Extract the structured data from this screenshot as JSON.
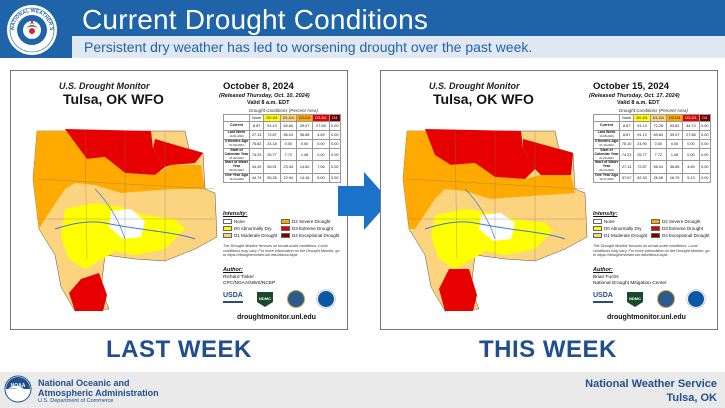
{
  "header": {
    "title": "Current Drought Conditions",
    "subtitle": "Persistent dry weather has led to worsening drought over the past week.",
    "logo_icon": "nws-logo",
    "logo_text": "NATIONAL WEATHER SERVICE"
  },
  "colors": {
    "header_bg": "#1f63a8",
    "accent_text": "#1f4f8f",
    "d0": "#ffff00",
    "d1": "#fcd37f",
    "d2": "#ffaa00",
    "d3": "#e60000",
    "d4": "#730000"
  },
  "panels": [
    {
      "usdm_title": "U.S. Drought Monitor",
      "location": "Tulsa, OK WFO",
      "date": "October 8, 2024",
      "released": "(Released Thursday, Oct. 10, 2024)",
      "valid": "Valid 8 a.m. EDT",
      "stats_caption": "Drought Conditions (Percent Area)",
      "columns": [
        "None",
        "D0-D4",
        "D1-D4",
        "D2-D4",
        "D3-D4",
        "D4"
      ],
      "rows": [
        {
          "label": "Current",
          "date": "",
          "values": [
            "8.87",
            "91.13",
            "69.84",
            "39.07",
            "27.58",
            "0.00"
          ]
        },
        {
          "label": "Last Week",
          "date": "10-01-2024",
          "values": [
            "27.13",
            "72.87",
            "56.04",
            "36.66",
            "4.69",
            "0.00"
          ]
        },
        {
          "label": "3 Months Ago",
          "date": "07-09-2024",
          "values": [
            "75.82",
            "24.18",
            "0.00",
            "0.00",
            "0.00",
            "0.00"
          ]
        },
        {
          "label": "Start of Calendar Year",
          "date": "01-02-2024",
          "values": [
            "74.23",
            "25.77",
            "7.72",
            "1.46",
            "0.00",
            "0.00"
          ]
        },
        {
          "label": "Start of Water Year",
          "date": "09-26-2023",
          "values": [
            "44.49",
            "55.51",
            "23.44",
            "14.60",
            "7.06",
            "0.00"
          ]
        },
        {
          "label": "One Year Ago",
          "date": "10-10-2023",
          "values": [
            "44.74",
            "55.26",
            "22.94",
            "14.16",
            "5.00",
            "0.00"
          ]
        }
      ],
      "intensity_title": "Intensity:",
      "legend": [
        "None",
        "D0 Abnormally Dry",
        "D1 Moderate Drought",
        "D2 Severe Drought",
        "D3 Extreme Drought",
        "D4 Exceptional Drought"
      ],
      "note": "The Drought Monitor focuses on broad-scale conditions. Local conditions may vary. For more information on the Drought Monitor, go to https://droughtmonitor.unl.edu/About.aspx",
      "author_title": "Author:",
      "author_name": "Richard Tinker",
      "author_org": "CPC/NOAA/NWS/NCEP",
      "usda_label": "USDA",
      "ndmc_label": "NDMC",
      "url": "droughtmonitor.unl.edu"
    },
    {
      "usdm_title": "U.S. Drought Monitor",
      "location": "Tulsa, OK WFO",
      "date": "October 15, 2024",
      "released": "(Released Thursday, Oct. 17, 2024)",
      "valid": "Valid 8 a.m. EDT",
      "stats_caption": "Drought Conditions (Percent Area)",
      "columns": [
        "None",
        "D0-D4",
        "D1-D4",
        "D2-D4",
        "D3-D4",
        "D4"
      ],
      "rows": [
        {
          "label": "Current",
          "date": "",
          "values": [
            "8.87",
            "91.13",
            "72.28",
            "53.62",
            "34.73",
            "0.00"
          ]
        },
        {
          "label": "Last Week",
          "date": "10-08-2024",
          "values": [
            "8.87",
            "91.13",
            "69.84",
            "39.07",
            "27.58",
            "0.00"
          ]
        },
        {
          "label": "3 Months Ago",
          "date": "07-16-2024",
          "values": [
            "75.10",
            "24.90",
            "0.00",
            "0.00",
            "0.00",
            "0.00"
          ]
        },
        {
          "label": "Start of Calendar Year",
          "date": "01-02-2024",
          "values": [
            "74.23",
            "25.77",
            "7.72",
            "1.46",
            "0.00",
            "0.00"
          ]
        },
        {
          "label": "Start of Water Year",
          "date": "09-24-2024",
          "values": [
            "27.13",
            "72.87",
            "56.04",
            "36.66",
            "4.69",
            "0.00"
          ]
        },
        {
          "label": "One Year Ago",
          "date": "10-17-2023",
          "values": [
            "37.67",
            "62.33",
            "26.08",
            "16.79",
            "5.13",
            "0.00"
          ]
        }
      ],
      "intensity_title": "Intensity:",
      "legend": [
        "None",
        "D0 Abnormally Dry",
        "D1 Moderate Drought",
        "D2 Severe Drought",
        "D3 Extreme Drought",
        "D4 Exceptional Drought"
      ],
      "note": "The Drought Monitor focuses on broad-scale conditions. Local conditions may vary. For more information on the Drought Monitor, go to https://droughtmonitor.unl.edu/About.aspx",
      "author_title": "Author:",
      "author_name": "Brian Fuchs",
      "author_org": "National Drought Mitigation Center",
      "usda_label": "USDA",
      "ndmc_label": "NDMC",
      "url": "droughtmonitor.unl.edu"
    }
  ],
  "labels": {
    "last_week": "LAST WEEK",
    "this_week": "THIS WEEK"
  },
  "footer": {
    "noaa_logo_text": "NOAA",
    "noaa_name": "National Oceanic and Atmospheric Administration",
    "noaa_dept": "U.S. Department of Commerce",
    "nws_name": "National Weather Service",
    "nws_location": "Tulsa, OK"
  }
}
